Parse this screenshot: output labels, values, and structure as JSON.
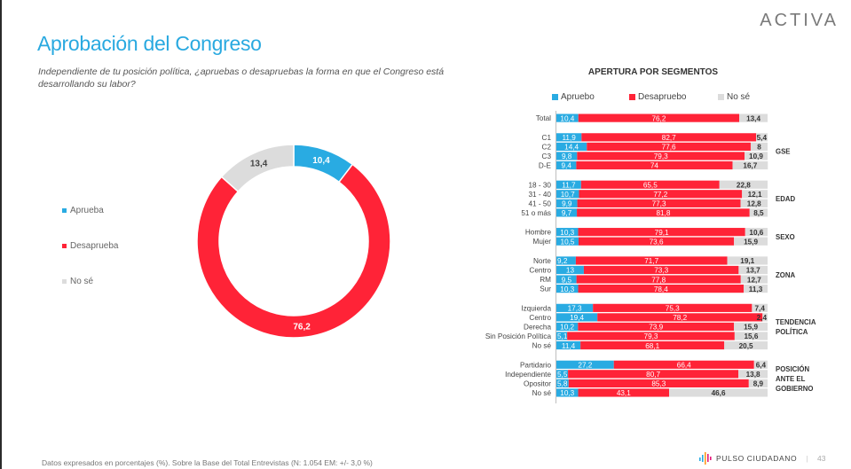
{
  "header": {
    "title": "Aprobación del Congreso",
    "subtitle": "Independiente de tu posición política, ¿apruebas o desapruebas la forma en que el Congreso está desarrollando su labor?",
    "brand": "ACTIVA"
  },
  "colors": {
    "approve": "#29abe2",
    "disapprove": "#ff2337",
    "dontknow": "#dcdcdc",
    "title": "#29a9e0"
  },
  "footer": {
    "note": "Datos expresados en porcentajes (%). Sobre la Base del Total Entrevistas (N: 1.054  EM: +/- 3,0 %)",
    "logo_text": "PULSO CIUDADANO",
    "separator": "|",
    "page_number": "43"
  },
  "chart_data": [
    {
      "type": "pie",
      "variant": "donut",
      "title": "Aprobación del Congreso",
      "legend_position": "left",
      "categories": [
        "Aprueba",
        "Desaprueba",
        "No sé"
      ],
      "values": [
        10.4,
        76.2,
        13.4
      ],
      "labels": [
        "10,4",
        "76,2",
        "13,4"
      ]
    },
    {
      "type": "bar",
      "orientation": "horizontal",
      "stacked": true,
      "title": "APERTURA POR SEGMENTOS",
      "legend_position": "top",
      "legend": [
        "Apruebo",
        "Desapruebo",
        "No sé"
      ],
      "xlim": [
        0,
        100
      ],
      "groups": [
        {
          "name": "",
          "rows": [
            {
              "label": "Total",
              "values": [
                10.4,
                76.2,
                13.4
              ],
              "texts": [
                "10,4",
                "76,2",
                "13,4"
              ]
            }
          ]
        },
        {
          "name": "GSE",
          "rows": [
            {
              "label": "C1",
              "values": [
                11.9,
                82.7,
                5.4
              ],
              "texts": [
                "11,9",
                "82,7",
                "5,4"
              ]
            },
            {
              "label": "C2",
              "values": [
                14.4,
                77.6,
                8
              ],
              "texts": [
                "14,4",
                "77,6",
                "8"
              ]
            },
            {
              "label": "C3",
              "values": [
                9.8,
                79.3,
                10.9
              ],
              "texts": [
                "9,8",
                "79,3",
                "10,9"
              ]
            },
            {
              "label": "D-E",
              "values": [
                9.4,
                74,
                16.7
              ],
              "texts": [
                "9,4",
                "74",
                "16,7"
              ]
            }
          ]
        },
        {
          "name": "EDAD",
          "rows": [
            {
              "label": "18 - 30",
              "values": [
                11.7,
                65.5,
                22.8
              ],
              "texts": [
                "11,7",
                "65,5",
                "22,8"
              ]
            },
            {
              "label": "31 - 40",
              "values": [
                10.7,
                77.2,
                12.1
              ],
              "texts": [
                "10,7",
                "77,2",
                "12,1"
              ]
            },
            {
              "label": "41 - 50",
              "values": [
                9.9,
                77.3,
                12.8
              ],
              "texts": [
                "9,9",
                "77,3",
                "12,8"
              ]
            },
            {
              "label": "51 o más",
              "values": [
                9.7,
                81.8,
                8.5
              ],
              "texts": [
                "9,7",
                "81,8",
                "8,5"
              ]
            }
          ]
        },
        {
          "name": "SEXO",
          "rows": [
            {
              "label": "Hombre",
              "values": [
                10.3,
                79.1,
                10.6
              ],
              "texts": [
                "10,3",
                "79,1",
                "10,6"
              ]
            },
            {
              "label": "Mujer",
              "values": [
                10.5,
                73.6,
                15.9
              ],
              "texts": [
                "10,5",
                "73,6",
                "15,9"
              ]
            }
          ]
        },
        {
          "name": "ZONA",
          "rows": [
            {
              "label": "Norte",
              "values": [
                9.2,
                71.7,
                19.1
              ],
              "texts": [
                "9,2",
                "71,7",
                "19,1"
              ]
            },
            {
              "label": "Centro",
              "values": [
                13,
                73.3,
                13.7
              ],
              "texts": [
                "13",
                "73,3",
                "13,7"
              ]
            },
            {
              "label": "RM",
              "values": [
                9.5,
                77.8,
                12.7
              ],
              "texts": [
                "9,5",
                "77,8",
                "12,7"
              ]
            },
            {
              "label": "Sur",
              "values": [
                10.3,
                78.4,
                11.3
              ],
              "texts": [
                "10,3",
                "78,4",
                "11,3"
              ]
            }
          ]
        },
        {
          "name": "TENDENCIA POLÍTICA",
          "rows": [
            {
              "label": "Izquierda",
              "values": [
                17.3,
                75.3,
                7.4
              ],
              "texts": [
                "17,3",
                "75,3",
                "7,4"
              ]
            },
            {
              "label": "Centro",
              "values": [
                19.4,
                78.2,
                2.4
              ],
              "texts": [
                "19,4",
                "78,2",
                "2,4"
              ]
            },
            {
              "label": "Derecha",
              "values": [
                10.2,
                73.9,
                15.9
              ],
              "texts": [
                "10,2",
                "73,9",
                "15,9"
              ]
            },
            {
              "label": "Sin Posición Política",
              "values": [
                5.1,
                79.3,
                15.6
              ],
              "texts": [
                "5,1",
                "79,3",
                "15,6"
              ]
            },
            {
              "label": "No sé",
              "values": [
                11.4,
                68.1,
                20.5
              ],
              "texts": [
                "11,4",
                "68,1",
                "20,5"
              ]
            }
          ]
        },
        {
          "name": "POSICIÓN ANTE EL GOBIERNO",
          "rows": [
            {
              "label": "Partidario",
              "values": [
                27.2,
                66.4,
                6.4
              ],
              "texts": [
                "27,2",
                "66,4",
                "6,4"
              ]
            },
            {
              "label": "Independiente",
              "values": [
                5.5,
                80.7,
                13.8
              ],
              "texts": [
                "5,5",
                "80,7",
                "13,8"
              ]
            },
            {
              "label": "Opositor",
              "values": [
                5.8,
                85.3,
                8.9
              ],
              "texts": [
                "5,8",
                "85,3",
                "8,9"
              ]
            },
            {
              "label": "No sé",
              "values": [
                10.3,
                43.1,
                46.6
              ],
              "texts": [
                "10,3",
                "43,1",
                "46,6"
              ]
            }
          ]
        }
      ]
    }
  ]
}
